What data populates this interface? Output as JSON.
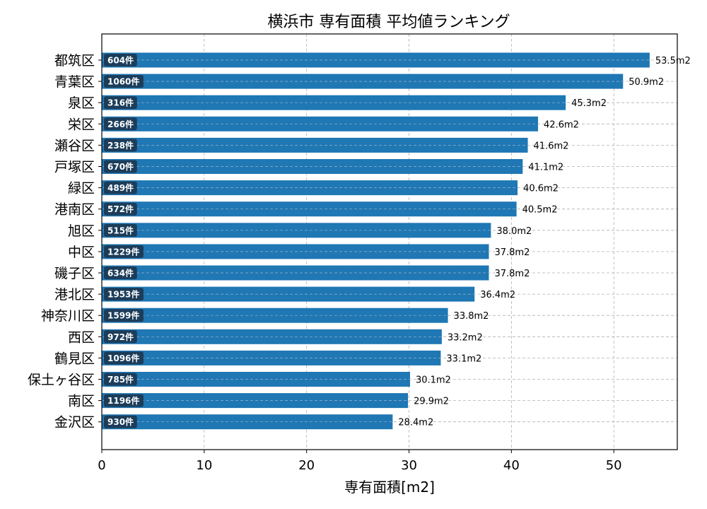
{
  "chart_data": {
    "type": "bar",
    "orientation": "horizontal",
    "title": "横浜市 専有面積 平均値ランキング",
    "xlabel": "専有面積[m2]",
    "ylabel": "",
    "xlim": [
      0,
      56.2
    ],
    "xticks": [
      0,
      10,
      20,
      30,
      40,
      50
    ],
    "grid": true,
    "bar_color": "#1f77b4",
    "count_badge_color": "#1c3d5a",
    "categories": [
      "都筑区",
      "青葉区",
      "泉区",
      "栄区",
      "瀬谷区",
      "戸塚区",
      "緑区",
      "港南区",
      "旭区",
      "中区",
      "磯子区",
      "港北区",
      "神奈川区",
      "西区",
      "鶴見区",
      "保土ヶ谷区",
      "南区",
      "金沢区"
    ],
    "values": [
      53.5,
      50.9,
      45.3,
      42.6,
      41.6,
      41.1,
      40.6,
      40.5,
      38.0,
      37.8,
      37.8,
      36.4,
      33.8,
      33.2,
      33.1,
      30.1,
      29.9,
      28.4
    ],
    "value_labels": [
      "53.5m2",
      "50.9m2",
      "45.3m2",
      "42.6m2",
      "41.6m2",
      "41.1m2",
      "40.6m2",
      "40.5m2",
      "38.0m2",
      "37.8m2",
      "37.8m2",
      "36.4m2",
      "33.8m2",
      "33.2m2",
      "33.1m2",
      "30.1m2",
      "29.9m2",
      "28.4m2"
    ],
    "count_labels": [
      "604件",
      "1060件",
      "316件",
      "266件",
      "238件",
      "670件",
      "489件",
      "572件",
      "515件",
      "1229件",
      "634件",
      "1953件",
      "1599件",
      "972件",
      "1096件",
      "785件",
      "1196件",
      "930件"
    ]
  }
}
